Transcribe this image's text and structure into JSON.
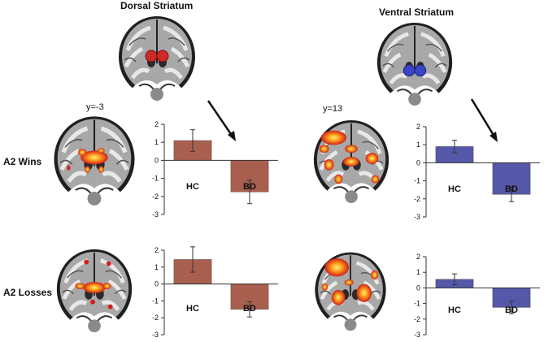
{
  "titles": {
    "dorsal": "Dorsal Striatum",
    "ventral": "Ventral Striatum"
  },
  "rows": {
    "wins": "A2 Wins",
    "losses": "A2 Losses"
  },
  "coords": {
    "dorsal": "y=-3",
    "ventral": "y=13"
  },
  "colors": {
    "dorsal": "#a95f4e",
    "ventral": "#5557a8",
    "roi_dorsal": "#cf2a2a",
    "roi_ventral": "#3a44c8"
  },
  "chart_data": [
    {
      "type": "bar",
      "title": "",
      "categories": [
        "HC",
        "BD"
      ],
      "values": [
        1.1,
        -1.75
      ],
      "errors": [
        0.6,
        0.65
      ],
      "ylim": [
        -3,
        2
      ],
      "yticks": [
        2,
        1,
        0,
        -1,
        -2,
        -3
      ],
      "color": "#a95f4e"
    },
    {
      "type": "bar",
      "title": "",
      "categories": [
        "HC",
        "BD"
      ],
      "values": [
        0.9,
        -1.75
      ],
      "errors": [
        0.35,
        0.4
      ],
      "ylim": [
        -3,
        2
      ],
      "yticks": [
        2,
        1,
        0,
        -1,
        -2,
        -3
      ],
      "color": "#5557a8"
    },
    {
      "type": "bar",
      "title": "",
      "categories": [
        "HC",
        "BD"
      ],
      "values": [
        1.45,
        -1.5
      ],
      "errors": [
        0.75,
        0.45
      ],
      "ylim": [
        -3,
        2
      ],
      "yticks": [
        2,
        1,
        0,
        -1,
        -2,
        -3
      ],
      "color": "#a95f4e"
    },
    {
      "type": "bar",
      "title": "",
      "categories": [
        "HC",
        "BD"
      ],
      "values": [
        0.55,
        -1.25
      ],
      "errors": [
        0.35,
        0.4
      ],
      "ylim": [
        -3,
        2
      ],
      "yticks": [
        2,
        1,
        0,
        -1,
        -2,
        -3
      ],
      "color": "#5557a8"
    }
  ]
}
